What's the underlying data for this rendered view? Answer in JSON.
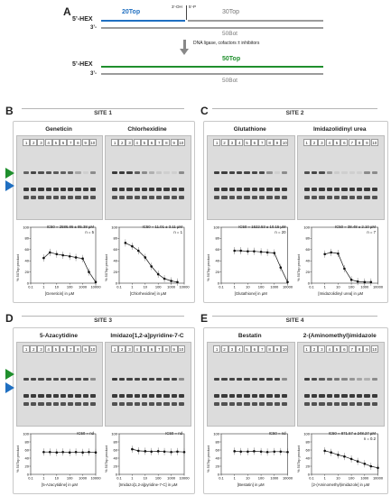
{
  "schematic": {
    "label": "A",
    "hex_top": "5’-HEX",
    "top_20": "20Top",
    "oh_label": "3’-OH",
    "p_label": "5’-P",
    "top_30": "30Top",
    "three_prime_a": "3’-",
    "bot_50_a": "50Bot",
    "ligase_text": "DNA ligase, cofactors ± inhibitors",
    "hex_bottom": "5’-HEX",
    "top_50": "50Top",
    "three_prime_b": "3’-",
    "bot_50_b": "50Bot",
    "colors": {
      "blue": "#1f6fc1",
      "green": "#1f8f2d",
      "gray": "#9b9b9b"
    }
  },
  "panels": {
    "B": {
      "label": "B",
      "site": "SITE 1",
      "compounds": [
        {
          "name": "Geneticin",
          "stat": "IC50 = 2586.86 ± 85.38 µM",
          "n": "n = 5",
          "xlabel": "[Geneticin] in µM"
        },
        {
          "name": "Chlorhexidine",
          "stat": "IC50 = 11.01 ± 3.11 µM",
          "n": "n = 1",
          "xlabel": "[Chlorhexidine] in µM"
        }
      ]
    },
    "C": {
      "label": "C",
      "site": "SITE 2",
      "compounds": [
        {
          "name": "Glutathione",
          "stat": "IC50 = 1522.53 ± 10.15 µM",
          "n": "n = 20",
          "xlabel": "[Glutathione] in µM"
        },
        {
          "name": "Imidazolidinyl urea",
          "stat": "IC50 = 38.48 ± 2.10 µM",
          "n": "n = 7",
          "xlabel": "[Imidazolidinyl urea] in µM"
        }
      ]
    },
    "D": {
      "label": "D",
      "site": "SITE 3",
      "compounds": [
        {
          "name": "5-Azacytidine",
          "stat": "IC50 = nd",
          "n": "",
          "xlabel": "[5-Azacytidine] in µM"
        },
        {
          "name": "Imidazo[1,2-a]pyridine-7-C",
          "stat": "IC50 = nd",
          "n": "",
          "xlabel": "[Imidazo[1,2-a]pyridine-7-C] in µM"
        }
      ]
    },
    "E": {
      "label": "E",
      "site": "SITE 4",
      "compounds": [
        {
          "name": "Bestatin",
          "stat": "IC50 = nd",
          "n": "",
          "xlabel": "[Bestatin] in µM"
        },
        {
          "name": "2-(Aminomethyl)imidazole",
          "stat": "IC50 = 871.57 ± 248.27 µM",
          "n": "n = 0.2",
          "xlabel": "[2-(Aminomethyl)imidazole] in µM"
        }
      ]
    }
  },
  "lane_numbers": [
    "1",
    "2",
    "3",
    "4",
    "5",
    "6",
    "7",
    "8",
    "9",
    "10"
  ],
  "ylabel": "% 50Top product",
  "xticks": [
    "0.1",
    "1",
    "10",
    "100",
    "1000",
    "10000"
  ],
  "yticks": [
    "0",
    "20",
    "40",
    "60",
    "80",
    "100"
  ],
  "chart_data": [
    {
      "type": "scatter",
      "title": "Geneticin",
      "xlabel": "[Geneticin] in µM",
      "ylabel": "% 50Top product",
      "xscale": "log",
      "xlim": [
        0.1,
        10000
      ],
      "ylim": [
        0,
        100
      ],
      "x": [
        1,
        3,
        10,
        30,
        100,
        300,
        1000,
        3000,
        10000
      ],
      "y": [
        45,
        55,
        52,
        50,
        48,
        46,
        44,
        20,
        2
      ]
    },
    {
      "type": "scatter",
      "title": "Chlorhexidine",
      "xlabel": "[Chlorhexidine] in µM",
      "ylabel": "% 50Top product",
      "xscale": "log",
      "xlim": [
        0.1,
        10000
      ],
      "ylim": [
        0,
        100
      ],
      "x": [
        0.3,
        1,
        3,
        10,
        30,
        100,
        300,
        1000,
        3000
      ],
      "y": [
        72,
        66,
        58,
        46,
        30,
        16,
        8,
        4,
        2
      ]
    },
    {
      "type": "scatter",
      "title": "Glutathione",
      "xlabel": "[Glutathione] in µM",
      "ylabel": "% 50Top product",
      "xscale": "log",
      "xlim": [
        0.1,
        10000
      ],
      "ylim": [
        0,
        100
      ],
      "x": [
        1,
        3,
        10,
        30,
        100,
        300,
        1000,
        3000,
        10000
      ],
      "y": [
        58,
        58,
        57,
        57,
        56,
        55,
        54,
        28,
        2
      ]
    },
    {
      "type": "scatter",
      "title": "Imidazolidinyl urea",
      "xlabel": "[Imidazolidinyl urea] in µM",
      "ylabel": "% 50Top product",
      "xscale": "log",
      "xlim": [
        0.1,
        10000
      ],
      "ylim": [
        0,
        100
      ],
      "x": [
        1,
        3,
        10,
        30,
        100,
        300,
        1000,
        3000
      ],
      "y": [
        52,
        55,
        53,
        26,
        6,
        3,
        2,
        2
      ]
    },
    {
      "type": "scatter",
      "title": "5-Azacytidine",
      "xlabel": "[5-Azacytidine] in µM",
      "ylabel": "% 50Top product",
      "xscale": "log",
      "xlim": [
        0.1,
        10000
      ],
      "ylim": [
        0,
        100
      ],
      "x": [
        1,
        3,
        10,
        30,
        100,
        300,
        1000,
        3000,
        10000
      ],
      "y": [
        55,
        55,
        54,
        55,
        54,
        55,
        54,
        55,
        54
      ]
    },
    {
      "type": "scatter",
      "title": "Imidazo[1,2-a]pyridine-7-C",
      "xlabel": "[Imidazo[1,2-a]pyridine-7-C] in µM",
      "ylabel": "% 50Top product",
      "xscale": "log",
      "xlim": [
        0.1,
        10000
      ],
      "ylim": [
        0,
        100
      ],
      "x": [
        1,
        3,
        10,
        30,
        100,
        300,
        1000,
        3000,
        10000
      ],
      "y": [
        62,
        58,
        57,
        56,
        57,
        56,
        55,
        56,
        55
      ]
    },
    {
      "type": "scatter",
      "title": "Bestatin",
      "xlabel": "[Bestatin] in µM",
      "ylabel": "% 50Top product",
      "xscale": "log",
      "xlim": [
        0.1,
        10000
      ],
      "ylim": [
        0,
        100
      ],
      "x": [
        1,
        3,
        10,
        30,
        100,
        300,
        1000,
        3000,
        10000
      ],
      "y": [
        57,
        56,
        56,
        57,
        56,
        55,
        56,
        56,
        55
      ]
    },
    {
      "type": "scatter",
      "title": "2-(Aminomethyl)imidazole",
      "xlabel": "[2-(Aminomethyl)imidazole] in µM",
      "ylabel": "% 50Top product",
      "xscale": "log",
      "xlim": [
        0.1,
        10000
      ],
      "ylim": [
        0,
        100
      ],
      "x": [
        1,
        3,
        10,
        30,
        100,
        300,
        1000,
        3000,
        10000
      ],
      "y": [
        58,
        54,
        48,
        44,
        38,
        32,
        26,
        20,
        16
      ]
    }
  ]
}
